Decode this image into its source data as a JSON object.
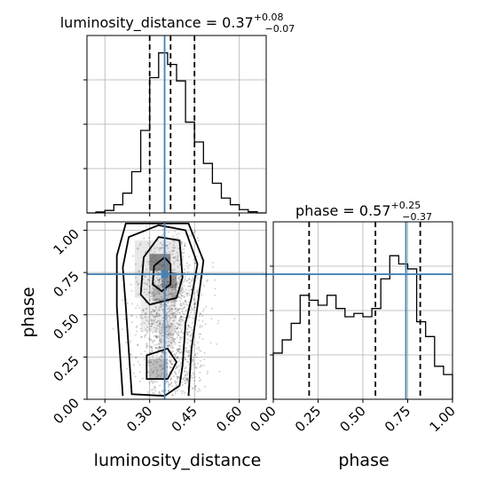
{
  "chart_data": {
    "type": "corner",
    "parameters": [
      "luminosity_distance",
      "phase"
    ],
    "truths": {
      "luminosity_distance": 0.35,
      "phase": 0.74
    },
    "panels": [
      {
        "id": "luminosity_distance-hist",
        "type": "histogram",
        "title_html": [
          "luminosity_distance = 0.37",
          "+0.08",
          "−0.07"
        ],
        "xlim": [
          0.09,
          0.69
        ],
        "ylim": [
          0,
          1
        ],
        "quantiles": [
          0.3,
          0.37,
          0.45
        ],
        "bin_edges": [
          0.09,
          0.12,
          0.15,
          0.18,
          0.21,
          0.24,
          0.27,
          0.3,
          0.33,
          0.36,
          0.39,
          0.42,
          0.45,
          0.48,
          0.51,
          0.54,
          0.57,
          0.6,
          0.63,
          0.66,
          0.69
        ],
        "counts": [
          0.0,
          0.006,
          0.015,
          0.05,
          0.12,
          0.25,
          0.5,
          0.82,
          0.97,
          0.9,
          0.8,
          0.55,
          0.43,
          0.3,
          0.18,
          0.09,
          0.05,
          0.02,
          0.007,
          0.0
        ]
      },
      {
        "id": "phase-hist",
        "type": "histogram",
        "title_html": [
          "phase = 0.57",
          "+0.25",
          "−0.37"
        ],
        "xlim": [
          0.0,
          1.0
        ],
        "ylim": [
          0,
          1
        ],
        "quantiles": [
          0.2,
          0.57,
          0.82
        ],
        "bin_edges": [
          0.0,
          0.05,
          0.1,
          0.15,
          0.2,
          0.25,
          0.3,
          0.35,
          0.4,
          0.45,
          0.5,
          0.55,
          0.6,
          0.65,
          0.7,
          0.75,
          0.8,
          0.85,
          0.9,
          0.95,
          1.0
        ],
        "counts": [
          0.28,
          0.36,
          0.46,
          0.63,
          0.6,
          0.57,
          0.63,
          0.55,
          0.5,
          0.52,
          0.5,
          0.55,
          0.73,
          0.87,
          0.82,
          0.79,
          0.47,
          0.38,
          0.2,
          0.15
        ]
      },
      {
        "id": "joint",
        "type": "2d-hist-contour",
        "xlim": [
          0.09,
          0.69
        ],
        "ylim": [
          0.0,
          1.05
        ],
        "xlabel": "luminosity_distance",
        "ylabel": "phase",
        "xticks": [
          "0.15",
          "0.30",
          "0.45",
          "0.60"
        ],
        "xtick_values": [
          0.15,
          0.3,
          0.45,
          0.6
        ],
        "yticks": [
          "0.00",
          "0.25",
          "0.50",
          "0.75",
          "1.00"
        ],
        "ytick_values": [
          0.0,
          0.25,
          0.5,
          0.75,
          1.0
        ]
      }
    ],
    "diag2_xlabel": "phase",
    "diag2_xticks": [
      "0.00",
      "0.25",
      "0.50",
      "0.75",
      "1.00"
    ],
    "diag2_xtick_values": [
      0.0,
      0.25,
      0.5,
      0.75,
      1.0
    ],
    "colors": {
      "truth": "#4682b4",
      "line": "#000000",
      "grid": "#b0b0b0"
    },
    "grid": true
  }
}
